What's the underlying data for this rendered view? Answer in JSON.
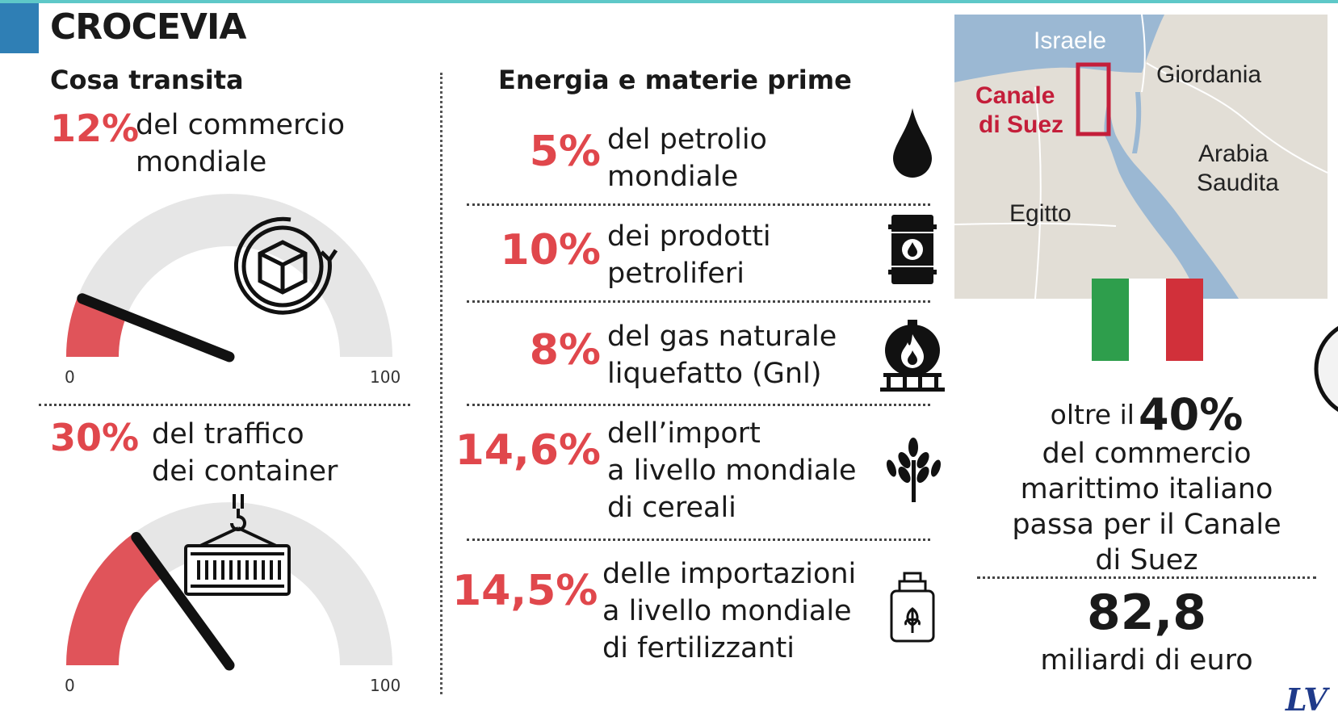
{
  "header": {
    "title": "CROCEVIA"
  },
  "left": {
    "heading": "Cosa transita",
    "gauges": [
      {
        "pct": "12%",
        "desc_line1": "del commercio",
        "desc_line2": "mondiale",
        "value": 12,
        "min": "0",
        "max": "100",
        "icon": "container-cycle-icon"
      },
      {
        "pct": "30%",
        "desc_line1": "del traffico",
        "desc_line2": "dei container",
        "value": 30,
        "min": "0",
        "max": "100",
        "icon": "crane-container-icon"
      }
    ]
  },
  "middle": {
    "heading": "Energia e materie prime",
    "items": [
      {
        "pct": "5%",
        "line1": "del petrolio",
        "line2": "mondiale",
        "line3": "",
        "icon": "oil-drop-icon"
      },
      {
        "pct": "10%",
        "line1": "dei prodotti",
        "line2": "petroliferi",
        "line3": "",
        "icon": "oil-barrel-icon"
      },
      {
        "pct": "8%",
        "line1": "del gas naturale",
        "line2": "liquefatto (Gnl)",
        "line3": "",
        "icon": "gas-tank-icon"
      },
      {
        "pct": "14,6%",
        "line1": "dell’import",
        "line2": "a livello mondiale",
        "line3": "di cereali",
        "icon": "wheat-icon"
      },
      {
        "pct": "14,5%",
        "line1": "delle importazioni",
        "line2": "a livello mondiale",
        "line3": "di fertilizzanti",
        "icon": "fertilizer-icon"
      }
    ]
  },
  "map": {
    "labels": {
      "israel": "Israele",
      "canal_line1": "Canale",
      "canal_line2": "di Suez",
      "jordan": "Giordania",
      "saudi_line1": "Arabia",
      "saudi_line2": "Saudita",
      "egypt": "Egitto"
    },
    "colors": {
      "land": "#e2ded6",
      "sea": "#9bb8d3",
      "highlight": "#c41e3a"
    }
  },
  "right": {
    "pre": "oltre il",
    "pct": "40%",
    "line1": "del commercio",
    "line2": "marittimo italiano",
    "line3": "passa per il Canale",
    "line4": "di Suez",
    "amount": "82,8",
    "amount_unit": "miliardi di euro",
    "flag_colors": [
      "#2e9e4c",
      "#ffffff",
      "#d1303a"
    ]
  },
  "brand": {
    "logo": "LV"
  },
  "chart_data": [
    {
      "type": "gauge",
      "title": "del commercio mondiale",
      "value": 12,
      "range": [
        0,
        100
      ],
      "tick_labels": [
        "0",
        "100"
      ]
    },
    {
      "type": "gauge",
      "title": "del traffico dei container",
      "value": 30,
      "range": [
        0,
        100
      ],
      "tick_labels": [
        "0",
        "100"
      ]
    },
    {
      "type": "bar",
      "categories": [
        "del petrolio mondiale",
        "dei prodotti petroliferi",
        "del gas naturale liquefatto (Gnl)",
        "dell’import a livello mondiale di cereali",
        "delle importazioni a livello mondiale di fertilizzanti"
      ],
      "values": [
        5,
        10,
        8,
        14.6,
        14.5
      ]
    }
  ]
}
